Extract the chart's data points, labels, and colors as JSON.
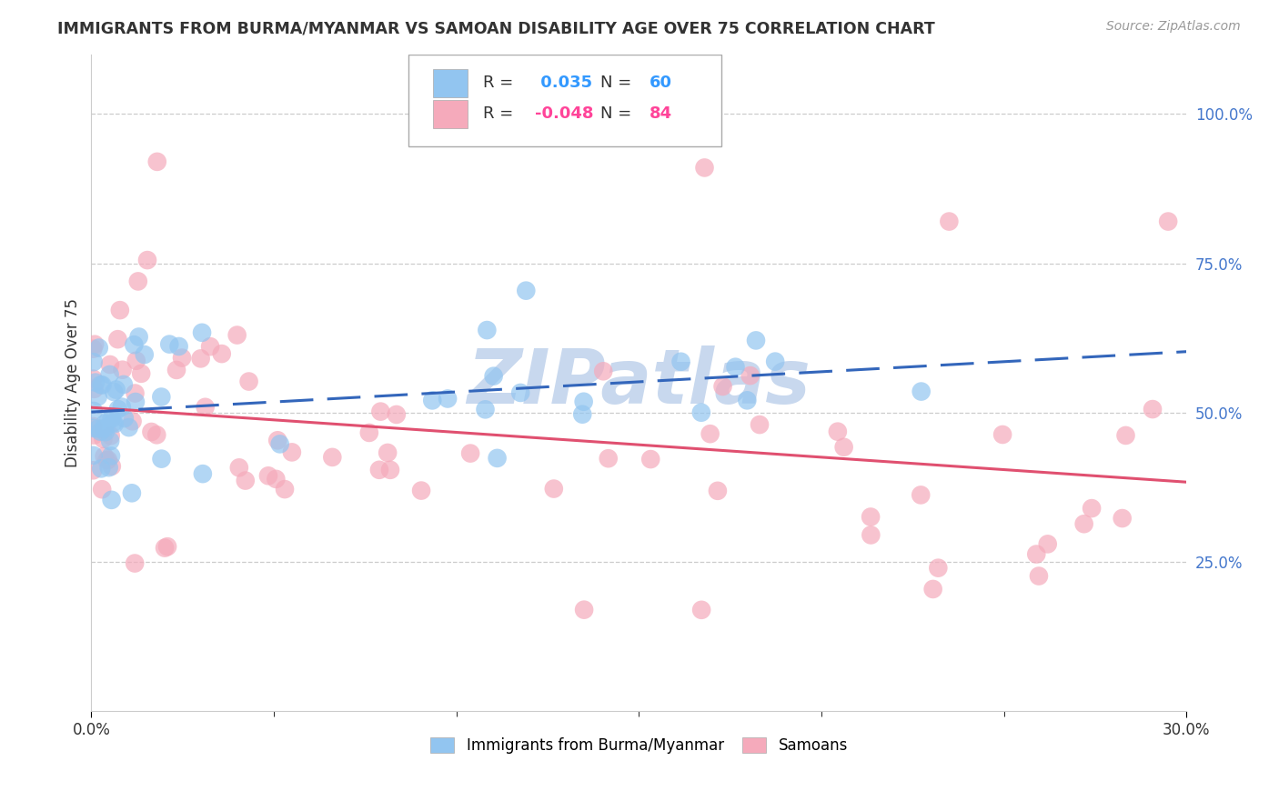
{
  "title": "IMMIGRANTS FROM BURMA/MYANMAR VS SAMOAN DISABILITY AGE OVER 75 CORRELATION CHART",
  "source": "Source: ZipAtlas.com",
  "ylabel": "Disability Age Over 75",
  "ytick_values": [
    0.25,
    0.5,
    0.75,
    1.0
  ],
  "ytick_labels": [
    "25.0%",
    "50.0%",
    "75.0%",
    "100.0%"
  ],
  "xlim": [
    0.0,
    0.3
  ],
  "ylim": [
    0.0,
    1.1
  ],
  "r_blue": 0.035,
  "n_blue": 60,
  "r_pink": -0.048,
  "n_pink": 84,
  "legend_label_blue": "Immigrants from Burma/Myanmar",
  "legend_label_pink": "Samoans",
  "blue_color": "#92C5F0",
  "pink_color": "#F5AABB",
  "blue_line_color": "#3366BB",
  "pink_line_color": "#E05070",
  "watermark_color": "#C8D8EE",
  "grid_color": "#CCCCCC",
  "title_color": "#333333",
  "source_color": "#999999",
  "ytick_color": "#4477CC",
  "xtick_color": "#333333",
  "legend_text_color": "#333333",
  "legend_r_color_blue": "#3399FF",
  "legend_r_color_pink": "#FF4499"
}
